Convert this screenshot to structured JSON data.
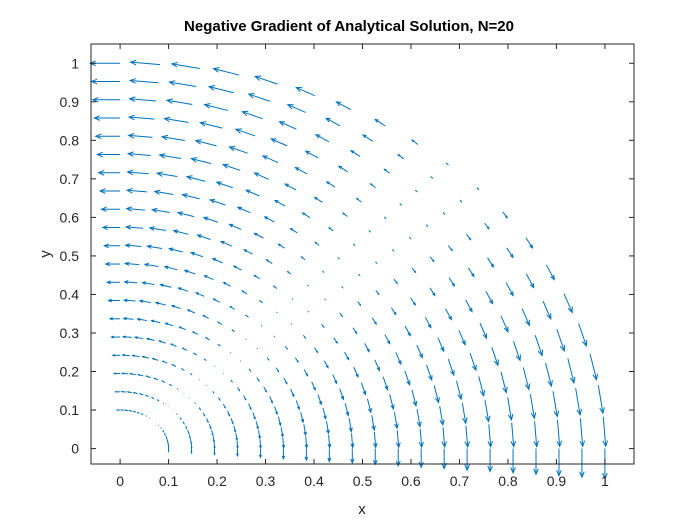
{
  "chart_data": {
    "type": "quiver",
    "title": "Negative Gradient of Analytical Solution, N=20",
    "xlabel": "x",
    "ylabel": "y",
    "xlim": [
      -0.06,
      1.06
    ],
    "ylim": [
      -0.04,
      1.05
    ],
    "xticks": [
      0,
      0.1,
      0.2,
      0.3,
      0.4,
      0.5,
      0.6,
      0.7,
      0.8,
      0.9,
      1
    ],
    "xtick_labels": [
      "0",
      "0.1",
      "0.2",
      "0.3",
      "0.4",
      "0.5",
      "0.6",
      "0.7",
      "0.8",
      "0.9",
      "1"
    ],
    "yticks": [
      0,
      0.1,
      0.2,
      0.3,
      0.4,
      0.5,
      0.6,
      0.7,
      0.8,
      0.9,
      1
    ],
    "ytick_labels": [
      "0",
      "0.1",
      "0.2",
      "0.3",
      "0.4",
      "0.5",
      "0.6",
      "0.7",
      "0.8",
      "0.9",
      "1"
    ],
    "grid": false,
    "domain": "quarter annulus",
    "r_range": [
      0.1,
      1.0
    ],
    "theta_range_deg": [
      0,
      90
    ],
    "N": 20,
    "series_color": "#0072bd"
  }
}
